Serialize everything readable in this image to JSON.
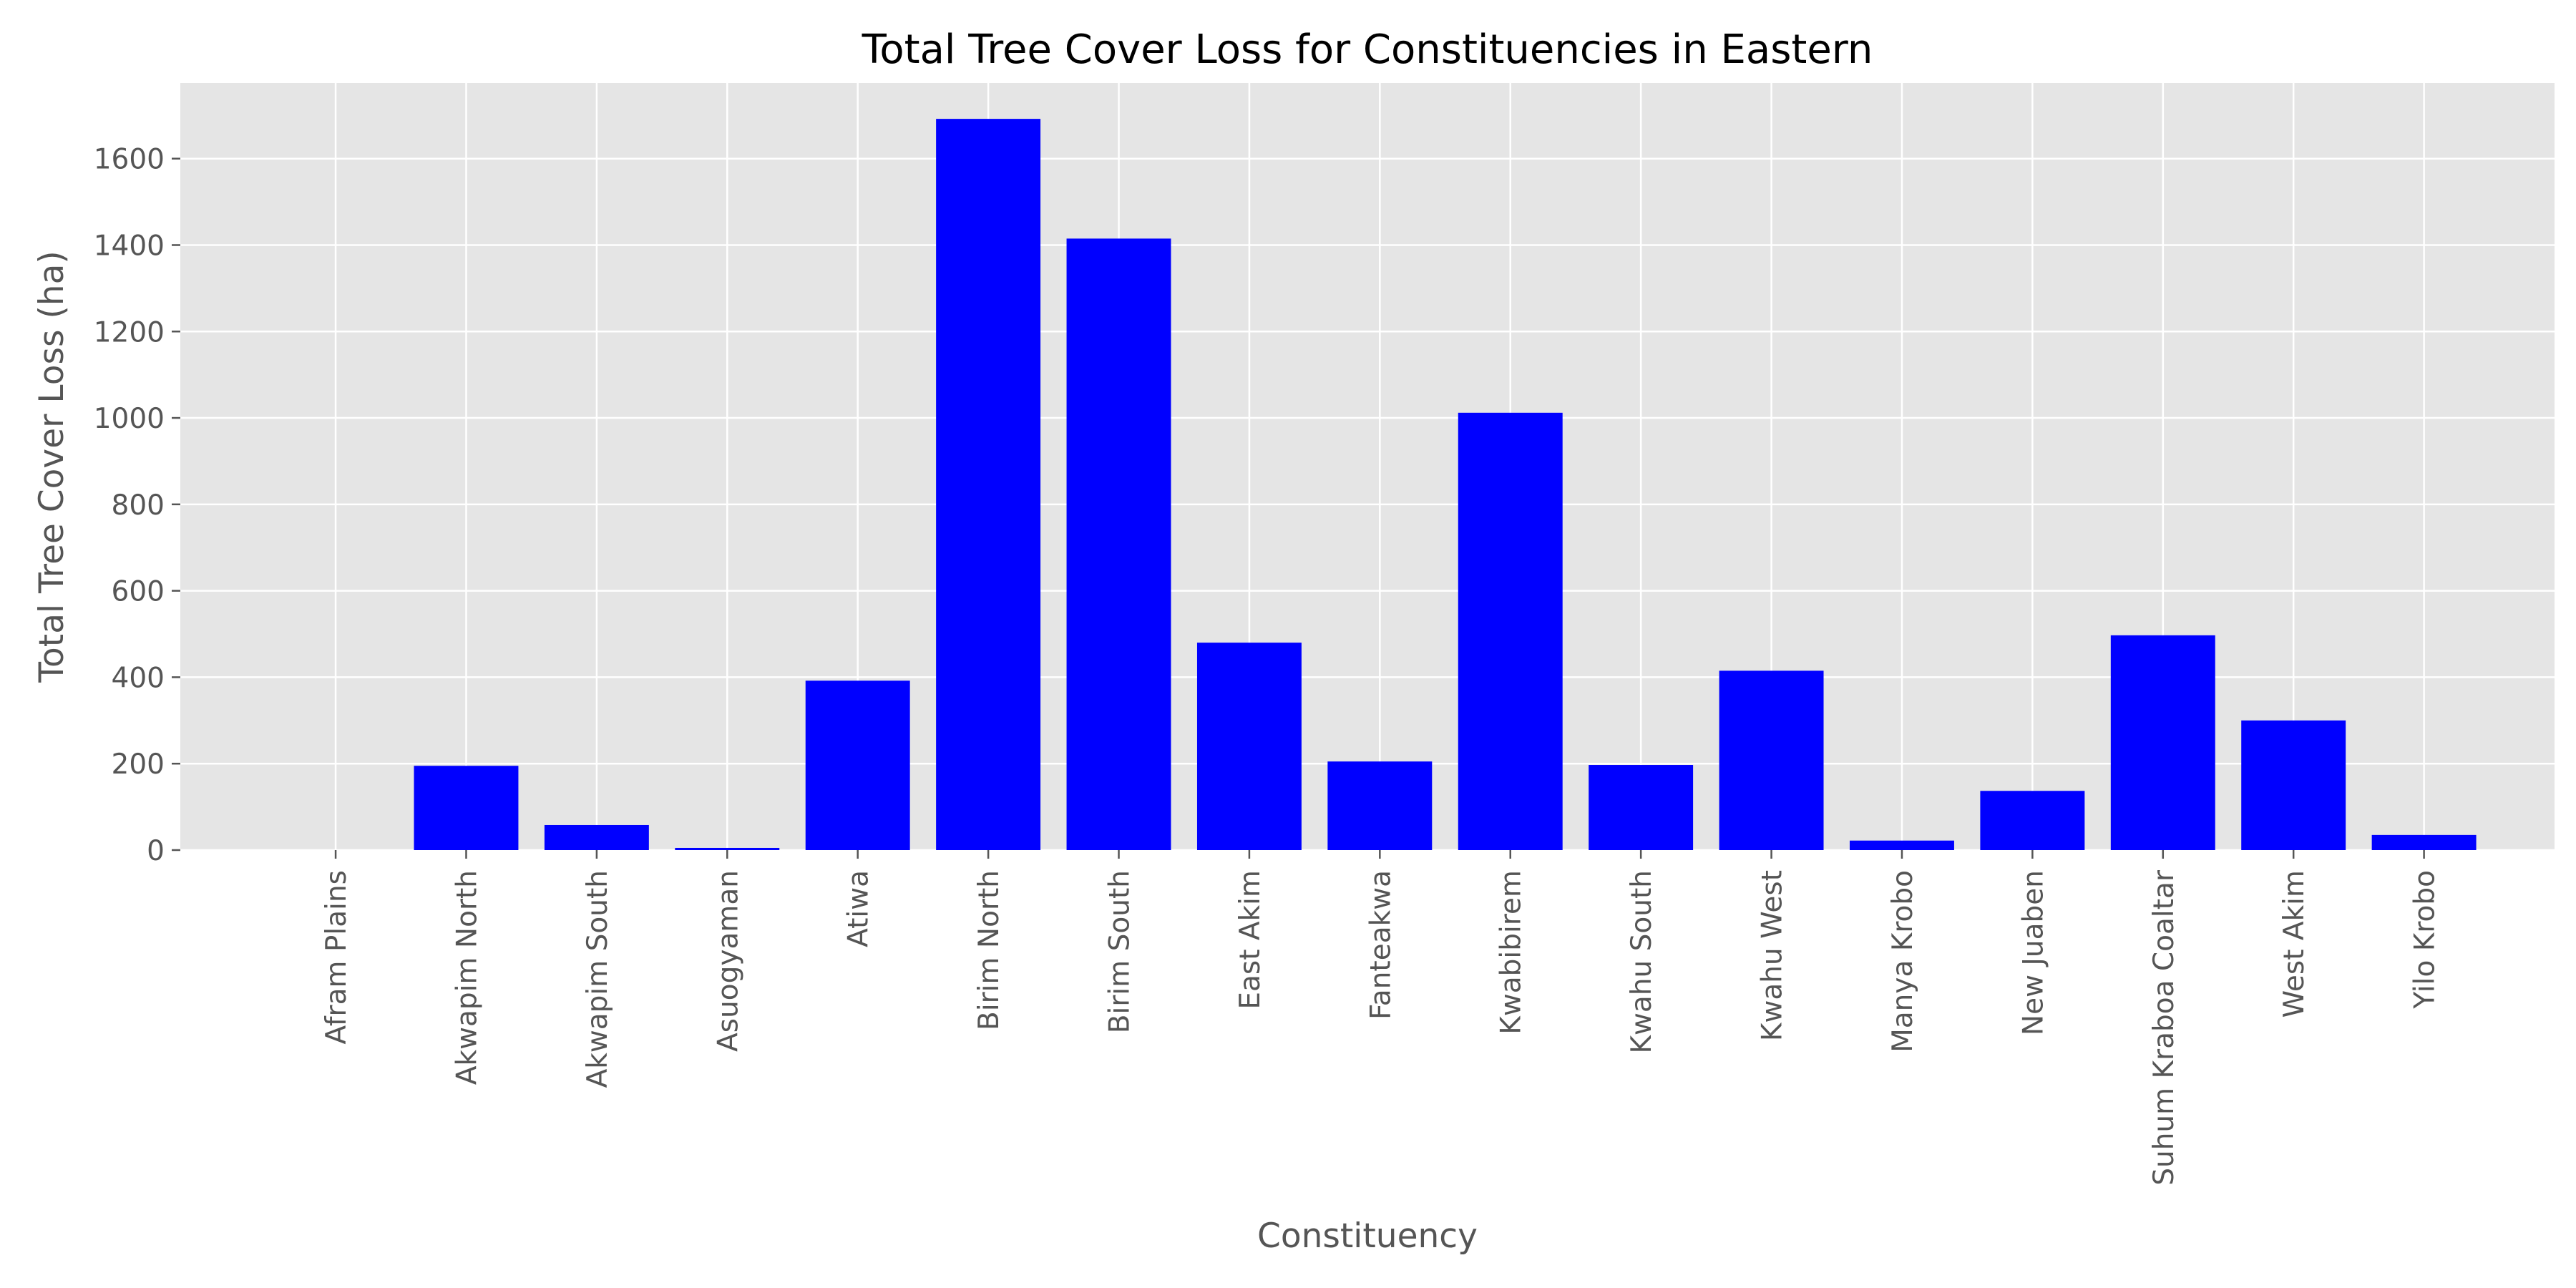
{
  "chart_data": {
    "type": "bar",
    "title": "Total Tree Cover Loss for Constituencies in Eastern",
    "xlabel": "Constituency",
    "ylabel": "Total Tree Cover Loss (ha)",
    "categories": [
      "Afram Plains",
      "Akwapim North",
      "Akwapim South",
      "Asuogyaman",
      "Atiwa",
      "Birim North",
      "Birim South",
      "East Akim",
      "Fanteakwa",
      "Kwabibirem",
      "Kwahu South",
      "Kwahu West",
      "Manya Krobo",
      "New Juaben",
      "Suhum Kraboa Coaltar",
      "West Akim",
      "Yilo Krobo"
    ],
    "values": [
      0,
      195,
      58,
      5,
      392,
      1692,
      1415,
      480,
      205,
      1012,
      197,
      415,
      22,
      137,
      497,
      300,
      35
    ],
    "ylim": [
      0,
      1775
    ],
    "yticks": [
      0,
      200,
      400,
      600,
      800,
      1000,
      1200,
      1400,
      1600
    ],
    "grid": true,
    "colors": {
      "bar": "#0000ff",
      "plot_background": "#e5e5e5",
      "grid": "#ffffff",
      "tick": "#555555"
    }
  }
}
